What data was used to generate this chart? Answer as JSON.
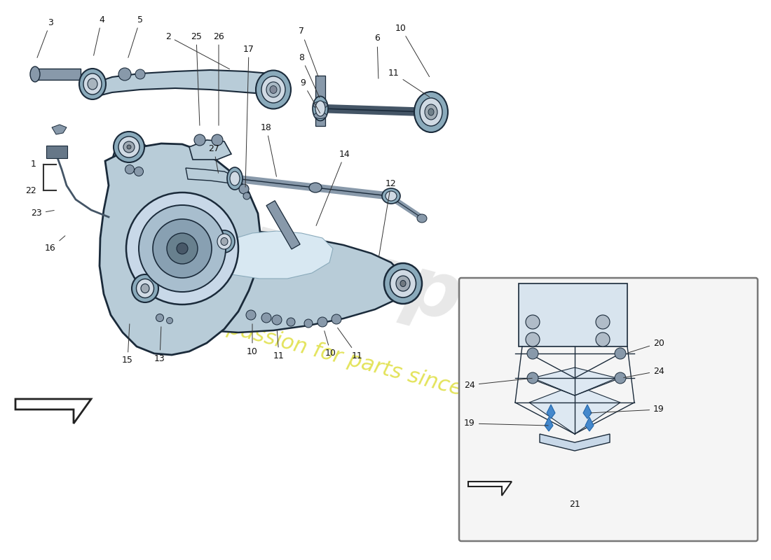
{
  "background_color": "#ffffff",
  "main_part_color": "#b8ccd8",
  "main_part_color2": "#8aaabb",
  "main_part_dark": "#7090a0",
  "outline_color": "#1a2a3a",
  "label_color": "#111111",
  "inset_bg": "#f5f5f5",
  "inset_border": "#777777",
  "figsize": [
    11.0,
    8.0
  ],
  "dpi": 100
}
